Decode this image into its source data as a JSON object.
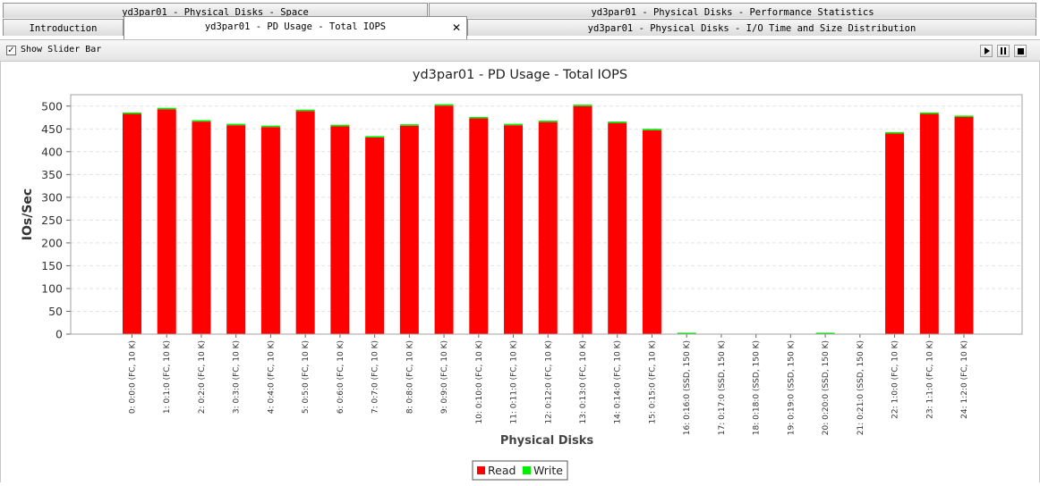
{
  "tabs": {
    "row1": [
      {
        "label": "yd3par01 - Physical Disks - Space"
      },
      {
        "label": "yd3par01 - Physical Disks - Performance Statistics"
      }
    ],
    "row2": [
      {
        "label": "Introduction"
      },
      {
        "label": "yd3par01 - PD Usage - Total IOPS"
      },
      {
        "label": "yd3par01 - Physical Disks - I/O Time and Size Distribution"
      }
    ],
    "close_glyph": "✕"
  },
  "toolbar": {
    "slider_label": "Show Slider Bar",
    "slider_checked": true,
    "checkbox_glyph": "✓",
    "controls": [
      "play-icon",
      "pause-icon",
      "stop-icon"
    ]
  },
  "colors": {
    "read": "#ff0000",
    "write": "#00ee00",
    "grid": "#e2e2e2",
    "plot_border": "#a0a0a0"
  },
  "chart_data": {
    "type": "bar",
    "stacked": true,
    "title": "yd3par01 - PD Usage - Total IOPS",
    "xlabel": "Physical Disks",
    "ylabel": "IOs/Sec",
    "ylim": [
      0,
      525
    ],
    "yticks": [
      0,
      50,
      100,
      150,
      200,
      250,
      300,
      350,
      400,
      450,
      500
    ],
    "grid": true,
    "legend_position": "bottom-center",
    "categories": [
      "0: 0:0:0 (FC, 10 K)",
      "1: 0:1:0 (FC, 10 K)",
      "2: 0:2:0 (FC, 10 K)",
      "3: 0:3:0 (FC, 10 K)",
      "4: 0:4:0 (FC, 10 K)",
      "5: 0:5:0 (FC, 10 K)",
      "6: 0:6:0 (FC, 10 K)",
      "7: 0:7:0 (FC, 10 K)",
      "8: 0:8:0 (FC, 10 K)",
      "9: 0:9:0 (FC, 10 K)",
      "10: 0:10:0 (FC, 10 K)",
      "11: 0:11:0 (FC, 10 K)",
      "12: 0:12:0 (FC, 10 K)",
      "13: 0:13:0 (FC, 10 K)",
      "14: 0:14:0 (FC, 10 K)",
      "15: 0:15:0 (FC, 10 K)",
      "16: 0:16:0 (SSD, 150 K)",
      "17: 0:17:0 (SSD, 150 K)",
      "18: 0:18:0 (SSD, 150 K)",
      "19: 0:19:0 (SSD, 150 K)",
      "20: 0:20:0 (SSD, 150 K)",
      "21: 0:21:0 (SSD, 150 K)",
      "22: 1:0:0 (FC, 10 K)",
      "23: 1:1:0 (FC, 10 K)",
      "24: 1:2:0 (FC, 10 K)"
    ],
    "series": [
      {
        "name": "Read",
        "values": [
          483,
          493,
          466,
          458,
          454,
          489,
          456,
          431,
          457,
          501,
          473,
          458,
          465,
          500,
          463,
          447,
          0,
          0,
          0,
          0,
          0,
          0,
          440,
          483,
          476
        ]
      },
      {
        "name": "Write",
        "values": [
          2,
          3,
          1,
          1,
          1,
          1,
          3,
          3,
          2,
          3,
          1,
          1,
          1,
          1,
          3,
          3,
          1,
          0,
          0,
          0,
          1,
          0,
          1,
          1,
          2
        ]
      }
    ]
  }
}
